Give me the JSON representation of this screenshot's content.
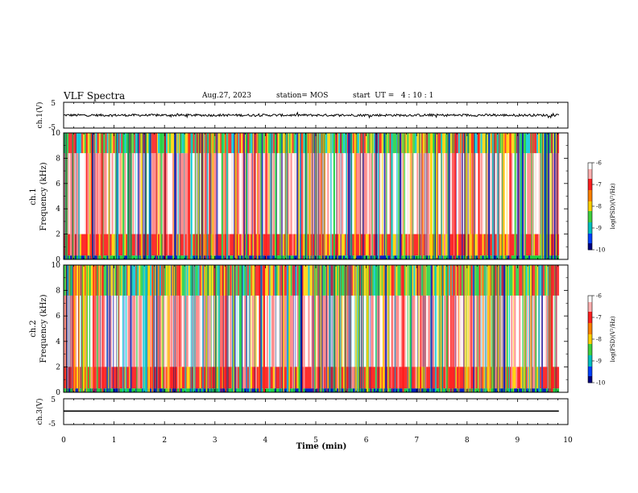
{
  "header": {
    "title": "VLF Spectra",
    "date": "Aug.27, 2023",
    "station": "station= MOS",
    "start": "start  UT =   4 : 10 : 1"
  },
  "chart_data": [
    {
      "type": "line",
      "title": "",
      "ylabel": "ch.1(V)",
      "ylim": [
        -5,
        5
      ],
      "yticks": [
        "5",
        "-5"
      ],
      "xlim": [
        0,
        10
      ],
      "series": [
        {
          "values_description": "noisy signal near",
          "level": 0
        }
      ]
    },
    {
      "type": "heatmap",
      "ylabel": "Frequency (kHz)",
      "panel_label": "ch.1",
      "xlim": [
        0,
        10
      ],
      "ylim": [
        0,
        10
      ],
      "yticks": [
        "0",
        "2",
        "4",
        "6",
        "8",
        "10"
      ],
      "colorbar": {
        "label": "log(PSD)(V²/Hz)",
        "range": [
          -10,
          -6
        ],
        "ticks": [
          "-6",
          "-7",
          "-8",
          "-9",
          "-10"
        ]
      }
    },
    {
      "type": "heatmap",
      "ylabel": "Frequency (kHz)",
      "panel_label": "ch.2",
      "xlim": [
        0,
        10
      ],
      "ylim": [
        0,
        10
      ],
      "yticks": [
        "0",
        "2",
        "4",
        "6",
        "8",
        "10"
      ],
      "colorbar": {
        "label": "log(PSD)(V²/Hz)",
        "range": [
          -10,
          -6
        ],
        "ticks": [
          "-6",
          "-7",
          "-8",
          "-9",
          "-10"
        ]
      }
    },
    {
      "type": "line",
      "ylabel": "ch.3(V)",
      "ylim": [
        -5,
        5
      ],
      "yticks": [
        "5",
        "-5"
      ],
      "xlim": [
        0,
        10
      ],
      "series": [
        {
          "level": -1
        }
      ],
      "xlabel": "Time  (min)",
      "xticks": [
        "0",
        "1",
        "2",
        "3",
        "4",
        "5",
        "6",
        "7",
        "8",
        "9",
        "10"
      ]
    }
  ],
  "colors": {
    "axis": "#000000",
    "signal": "#000000",
    "spec_red": "#ff1a1a",
    "spec_yellow": "#ffd200",
    "spec_green": "#20d040",
    "spec_cyan": "#00c8d8",
    "spec_blue": "#0020c0"
  }
}
